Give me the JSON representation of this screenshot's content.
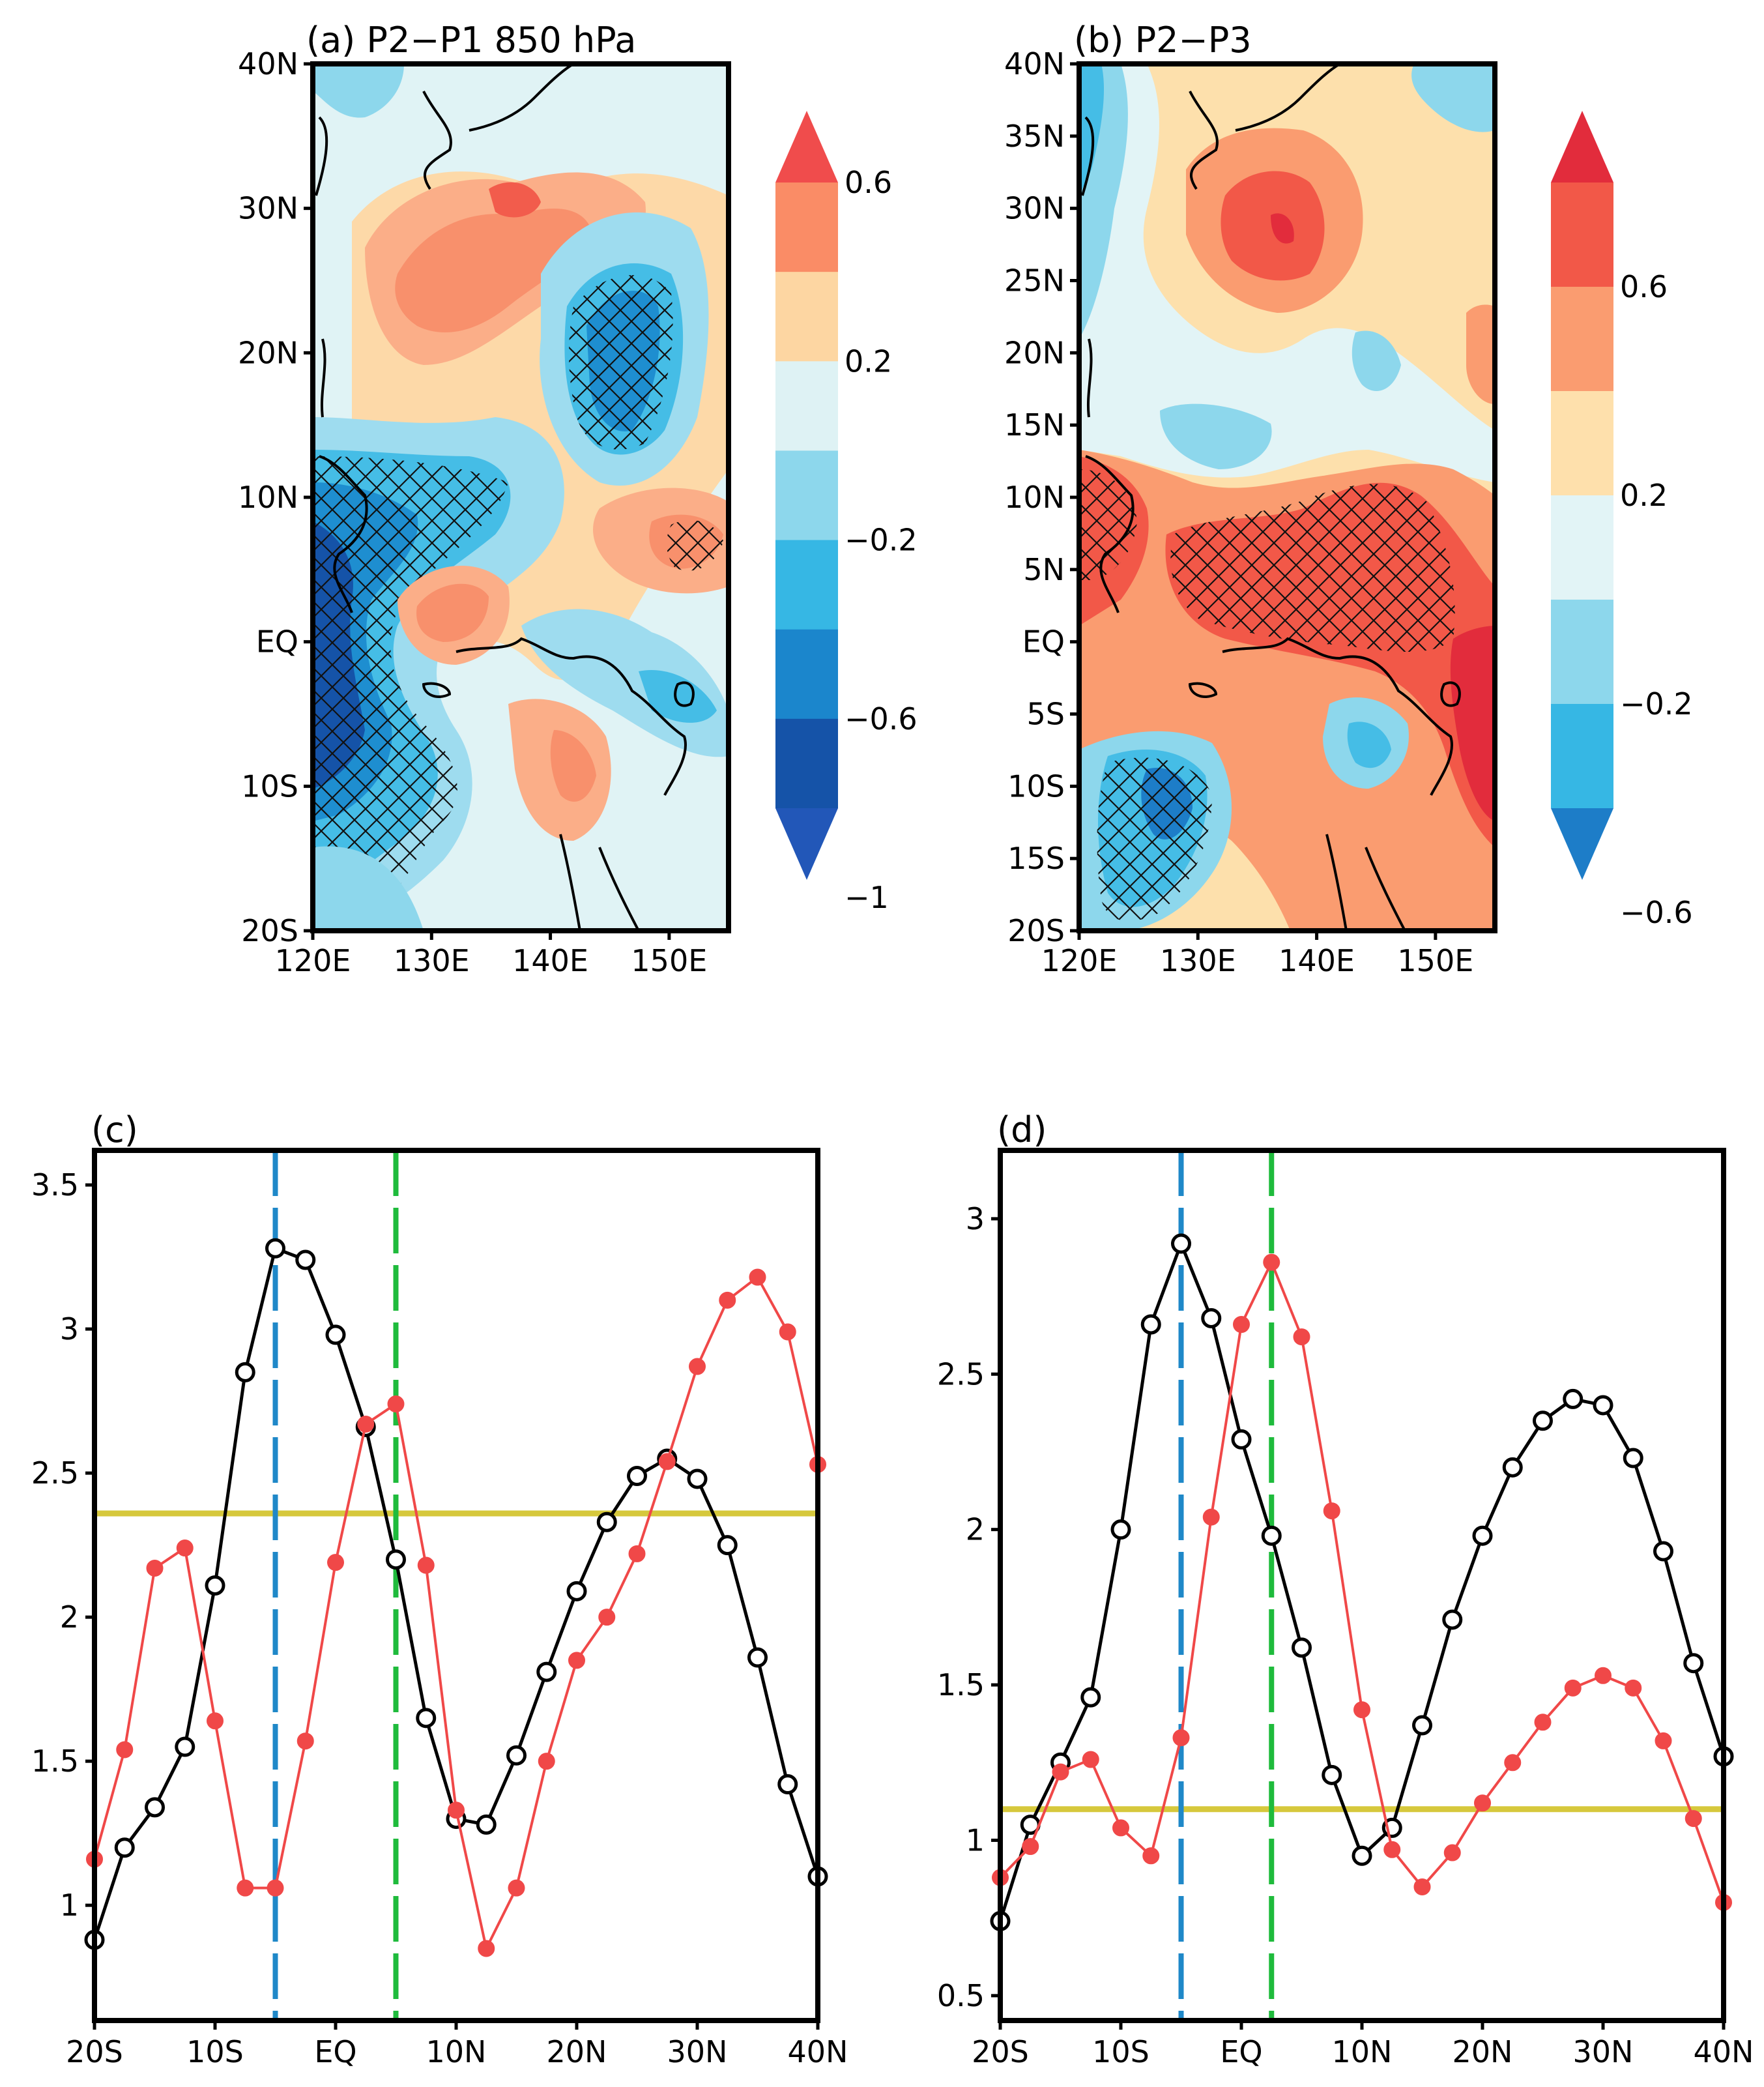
{
  "figure": {
    "panels": {
      "a": {
        "title": "(a) P2−P1 850 hPa"
      },
      "b": {
        "title": "(b) P2−P3"
      },
      "c": {
        "title": "(c)"
      },
      "d": {
        "title": "(d)"
      }
    }
  },
  "chart_data": [
    {
      "id": "a",
      "type": "heatmap",
      "title": "(a) P2−P1 850 hPa",
      "x_ticks": [
        "120E",
        "130E",
        "140E",
        "150E"
      ],
      "y_ticks": [
        "20S",
        "10S",
        "EQ",
        "10N",
        "20N",
        "30N",
        "40N"
      ],
      "xlim": [
        120,
        155
      ],
      "ylim": [
        -20,
        40
      ],
      "colorbar": {
        "labels": [
          "0.6",
          "0.2",
          "−0.2",
          "−0.6",
          "−1"
        ],
        "colors": [
          "#f04c4c",
          "#fa8c66",
          "#fdd6a2",
          "#def2f4",
          "#8dd7ec",
          "#36b7e4",
          "#1b86cc",
          "#1553a8",
          "#2257b8"
        ]
      },
      "features": [
        {
          "name": "positive anomaly north",
          "lon": 137,
          "lat": 27,
          "value": 0.4
        },
        {
          "name": "negative anomaly northeast",
          "lon": 148,
          "lat": 20,
          "value": -0.6,
          "hatched": true
        },
        {
          "name": "negative anomaly west",
          "lon": 122,
          "lat": 0,
          "value": -1.0,
          "hatched": true
        },
        {
          "name": "positive anomaly near equator",
          "lon": 131,
          "lat": 1,
          "value": 0.4
        },
        {
          "name": "positive anomaly east",
          "lon": 150,
          "lat": 7,
          "value": 0.3,
          "hatched": true
        },
        {
          "name": "positive anomaly south",
          "lon": 142,
          "lat": -9,
          "value": 0.4
        }
      ]
    },
    {
      "id": "b",
      "type": "heatmap",
      "title": "(b) P2−P3",
      "x_ticks": [
        "120E",
        "130E",
        "140E",
        "150E"
      ],
      "y_ticks": [
        "20S",
        "15S",
        "10S",
        "5S",
        "EQ",
        "5N",
        "10N",
        "15N",
        "20N",
        "25N",
        "30N",
        "35N",
        "40N"
      ],
      "xlim": [
        120,
        155
      ],
      "ylim": [
        -20,
        40
      ],
      "colorbar": {
        "labels": [
          "0.6",
          "0.2",
          "−0.2",
          "−0.6"
        ],
        "colors": [
          "#e22c3c",
          "#f25848",
          "#fa9c70",
          "#fee0ac",
          "#e2f4f6",
          "#8dd7ec",
          "#36b7e4",
          "#1d7dc8"
        ]
      },
      "features": [
        {
          "name": "positive anomaly north",
          "lon": 137,
          "lat": 28,
          "value": 0.6
        },
        {
          "name": "positive anomaly equatorial band",
          "lon": 140,
          "lat": 4,
          "value": 0.6,
          "hatched": true
        },
        {
          "name": "positive anomaly west",
          "lon": 122,
          "lat": 10,
          "value": 0.6,
          "hatched": true
        },
        {
          "name": "negative anomaly southwest",
          "lon": 128,
          "lat": -11,
          "value": -0.6,
          "hatched": true
        },
        {
          "name": "negative anomaly south",
          "lon": 141,
          "lat": -7,
          "value": -0.5
        },
        {
          "name": "negative anomaly northwest",
          "lon": 124,
          "lat": 28,
          "value": -0.3
        }
      ]
    },
    {
      "id": "c",
      "type": "line",
      "title": "(c)",
      "x_ticks": [
        "20S",
        "10S",
        "EQ",
        "10N",
        "20N",
        "30N",
        "40N"
      ],
      "y_ticks": [
        "1",
        "1.5",
        "2",
        "2.5",
        "3",
        "3.5"
      ],
      "xlim": [
        -20,
        40
      ],
      "ylim": [
        0.6,
        3.62
      ],
      "x": [
        -20,
        -17.5,
        -15,
        -12.5,
        -10,
        -7.5,
        -5,
        -2.5,
        0,
        2.5,
        5,
        7.5,
        10,
        12.5,
        15,
        17.5,
        20,
        22.5,
        25,
        27.5,
        30,
        32.5,
        35,
        37.5,
        40
      ],
      "series": [
        {
          "name": "black",
          "color": "#000000",
          "marker": "open-circle",
          "values": [
            0.88,
            1.2,
            1.34,
            1.55,
            2.11,
            2.85,
            3.28,
            3.24,
            2.98,
            2.66,
            2.2,
            1.65,
            1.3,
            1.28,
            1.52,
            1.81,
            2.09,
            2.33,
            2.49,
            2.55,
            2.48,
            2.25,
            1.86,
            1.42,
            1.1
          ]
        },
        {
          "name": "red",
          "color": "#f04848",
          "marker": "filled-circle",
          "values": [
            1.16,
            1.54,
            2.17,
            2.24,
            1.64,
            1.06,
            1.06,
            1.57,
            2.19,
            2.67,
            2.74,
            2.18,
            1.33,
            0.85,
            1.06,
            1.5,
            1.85,
            2.0,
            2.22,
            2.54,
            2.87,
            3.1,
            3.18,
            2.99,
            2.53
          ]
        }
      ],
      "hlines": [
        {
          "y": 2.36,
          "color": "#d6c83c"
        }
      ],
      "vlines": [
        {
          "x": -5,
          "color": "#1f88c8",
          "style": "dashed"
        },
        {
          "x": 5,
          "color": "#1fbb3c",
          "style": "dashed"
        }
      ]
    },
    {
      "id": "d",
      "type": "line",
      "title": "(d)",
      "x_ticks": [
        "20S",
        "10S",
        "EQ",
        "10N",
        "20N",
        "30N",
        "40N"
      ],
      "y_ticks": [
        "0.5",
        "1",
        "1.5",
        "2",
        "2.5",
        "3"
      ],
      "xlim": [
        -20,
        40
      ],
      "ylim": [
        0.42,
        3.22
      ],
      "x": [
        -20,
        -17.5,
        -15,
        -12.5,
        -10,
        -7.5,
        -5,
        -2.5,
        0,
        2.5,
        5,
        7.5,
        10,
        12.5,
        15,
        17.5,
        20,
        22.5,
        25,
        27.5,
        30,
        32.5,
        35,
        37.5,
        40
      ],
      "series": [
        {
          "name": "black",
          "color": "#000000",
          "marker": "open-circle",
          "values": [
            0.74,
            1.05,
            1.25,
            1.46,
            2.0,
            2.66,
            2.92,
            2.68,
            2.29,
            1.98,
            1.62,
            1.21,
            0.95,
            1.04,
            1.37,
            1.71,
            1.98,
            2.2,
            2.35,
            2.42,
            2.4,
            2.23,
            1.93,
            1.57,
            1.27
          ]
        },
        {
          "name": "red",
          "color": "#f04848",
          "marker": "filled-circle",
          "values": [
            0.88,
            0.98,
            1.22,
            1.26,
            1.04,
            0.95,
            1.33,
            2.04,
            2.66,
            2.86,
            2.62,
            2.06,
            1.42,
            0.97,
            0.85,
            0.96,
            1.12,
            1.25,
            1.38,
            1.49,
            1.53,
            1.49,
            1.32,
            1.07,
            0.8
          ]
        }
      ],
      "hlines": [
        {
          "y": 1.1,
          "color": "#d6c83c"
        }
      ],
      "vlines": [
        {
          "x": -5,
          "color": "#1f88c8",
          "style": "dashed"
        },
        {
          "x": 2.5,
          "color": "#1fbb3c",
          "style": "dashed"
        }
      ]
    }
  ]
}
